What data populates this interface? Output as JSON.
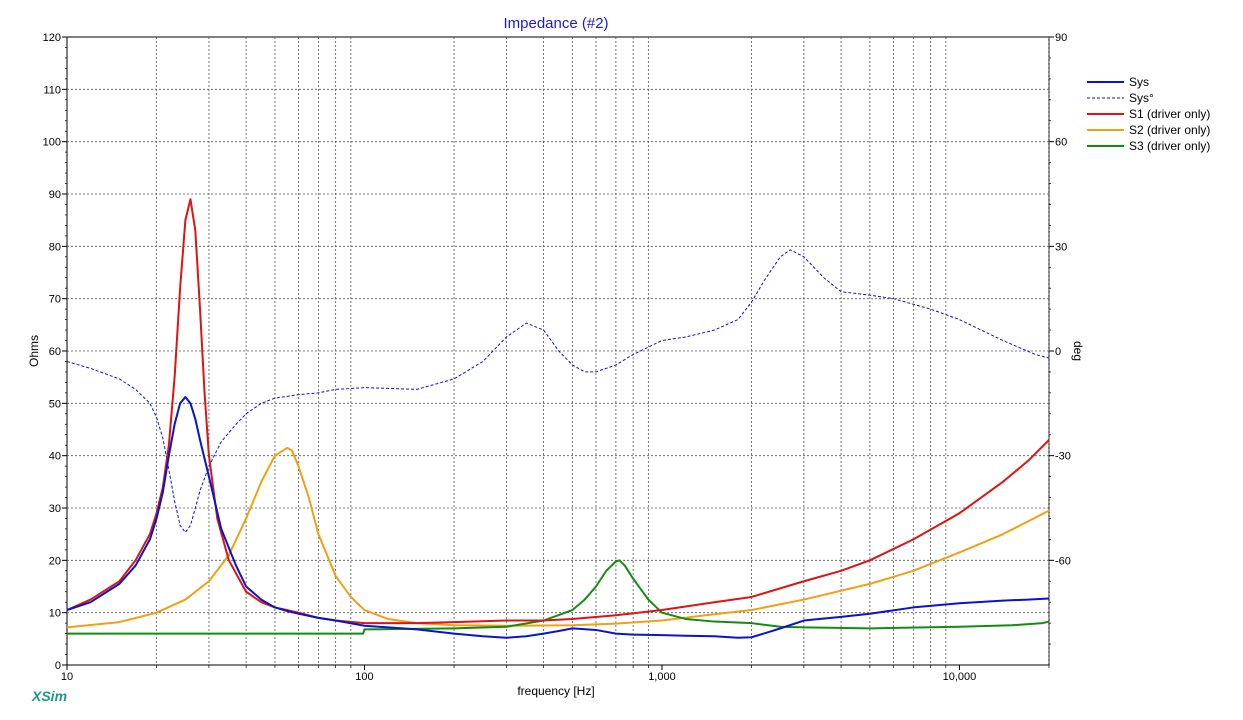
{
  "chart_data": {
    "type": "line",
    "title": "Impedance (#2)",
    "xlabel": "frequency [Hz]",
    "ylabel": "Ohms",
    "y2label": "deg",
    "xscale": "log",
    "xlim": [
      10,
      20000
    ],
    "ylim": [
      0,
      120
    ],
    "y2lim": [
      -90,
      90
    ],
    "xticks": [
      {
        "value": 10,
        "label": "10"
      },
      {
        "value": 100,
        "label": "100"
      },
      {
        "value": 1000,
        "label": "1,000"
      },
      {
        "value": 10000,
        "label": "10,000"
      }
    ],
    "yticks": [
      {
        "value": 0,
        "label": "0"
      },
      {
        "value": 10,
        "label": "10"
      },
      {
        "value": 20,
        "label": "20"
      },
      {
        "value": 30,
        "label": "30"
      },
      {
        "value": 40,
        "label": "40"
      },
      {
        "value": 50,
        "label": "50"
      },
      {
        "value": 60,
        "label": "60"
      },
      {
        "value": 70,
        "label": "70"
      },
      {
        "value": 80,
        "label": "80"
      },
      {
        "value": 90,
        "label": "90"
      },
      {
        "value": 100,
        "label": "100"
      },
      {
        "value": 110,
        "label": "110"
      },
      {
        "value": 120,
        "label": "120"
      }
    ],
    "y2ticks": [
      {
        "value": 90,
        "label": "90"
      },
      {
        "value": 60,
        "label": "60"
      },
      {
        "value": 30,
        "label": "30"
      },
      {
        "value": 0,
        "label": "0"
      },
      {
        "value": -30,
        "label": "-30"
      },
      {
        "value": -60,
        "label": "-60"
      }
    ],
    "grid": true,
    "legend_position": "top-right",
    "series": [
      {
        "name": "Sys",
        "axis": "left",
        "color": "#0a14c8",
        "style": "solid",
        "x": [
          10,
          12,
          15,
          17,
          19,
          20,
          21,
          22,
          23,
          24,
          25,
          26,
          27,
          28,
          30,
          33,
          37,
          40,
          45,
          50,
          55,
          60,
          70,
          80,
          100,
          150,
          200,
          250,
          300,
          350,
          400,
          450,
          500,
          600,
          700,
          800,
          1000,
          1200,
          1500,
          1800,
          2000,
          2200,
          2500,
          3000,
          4000,
          5000,
          7000,
          10000,
          14000,
          17000,
          20000
        ],
        "y": [
          10.5,
          12,
          15.5,
          19,
          24,
          28,
          33,
          40,
          46,
          50,
          51.2,
          50,
          47,
          43,
          36,
          26,
          19,
          15,
          12.5,
          11,
          10.3,
          9.8,
          9,
          8.5,
          7.5,
          6.8,
          6,
          5.5,
          5.2,
          5.5,
          6,
          6.5,
          7,
          6.7,
          6,
          5.8,
          5.7,
          5.6,
          5.5,
          5.2,
          5.3,
          6,
          7,
          8.5,
          9.2,
          9.8,
          11,
          11.8,
          12.3,
          12.5,
          12.7
        ]
      },
      {
        "name": "Sys°",
        "axis": "right",
        "color": "#0a14c8",
        "style": "dashed",
        "x": [
          10,
          12,
          15,
          17,
          19,
          20,
          21,
          22,
          23,
          24,
          25,
          26,
          27,
          28,
          30,
          33,
          37,
          40,
          45,
          50,
          55,
          60,
          70,
          80,
          100,
          150,
          200,
          250,
          300,
          350,
          400,
          450,
          500,
          550,
          600,
          700,
          800,
          1000,
          1200,
          1500,
          1800,
          2000,
          2200,
          2500,
          2700,
          3000,
          3500,
          4000,
          5000,
          6000,
          8000,
          10000,
          14000,
          18000,
          20000
        ],
        "y": [
          -3,
          -5,
          -8,
          -11,
          -15,
          -19,
          -25,
          -34,
          -43,
          -50,
          -52,
          -50,
          -45,
          -40,
          -33,
          -26,
          -21,
          -18,
          -15,
          -13.5,
          -13,
          -12.5,
          -12,
          -11,
          -10.5,
          -11,
          -8,
          -3,
          4,
          8,
          6,
          0,
          -4,
          -6,
          -6,
          -4,
          -1,
          3,
          4,
          6,
          9,
          14,
          20,
          27,
          29,
          27,
          21,
          17,
          16,
          15,
          12,
          9,
          3,
          -1,
          -2
        ]
      },
      {
        "name": "S1 (driver only)",
        "axis": "left",
        "color": "#dc1414",
        "style": "solid",
        "x": [
          10,
          12,
          15,
          17,
          19,
          20,
          21,
          22,
          23,
          24,
          25,
          26,
          27,
          28,
          29,
          30,
          32,
          35,
          40,
          45,
          50,
          55,
          60,
          70,
          80,
          100,
          150,
          200,
          300,
          400,
          500,
          700,
          1000,
          1500,
          2000,
          3000,
          4000,
          5000,
          7000,
          10000,
          14000,
          17000,
          20000
        ],
        "y": [
          10.5,
          12.5,
          16,
          20,
          25,
          29,
          34,
          42,
          55,
          72,
          85,
          89,
          83,
          68,
          52,
          40,
          28,
          20,
          14,
          12,
          11,
          10.5,
          10,
          9,
          8.5,
          8,
          8,
          8.2,
          8.5,
          8.5,
          8.8,
          9.5,
          10.5,
          12,
          13,
          16,
          18,
          20,
          24,
          29,
          35,
          39,
          43
        ]
      },
      {
        "name": "S2 (driver only)",
        "axis": "left",
        "color": "#f0a014",
        "style": "solid",
        "x": [
          10,
          15,
          20,
          25,
          30,
          35,
          40,
          45,
          50,
          55,
          57,
          60,
          65,
          70,
          80,
          90,
          100,
          120,
          150,
          200,
          300,
          500,
          700,
          1000,
          1500,
          2000,
          3000,
          5000,
          7000,
          10000,
          14000,
          20000
        ],
        "y": [
          7.2,
          8.2,
          10,
          12.5,
          16,
          21,
          28,
          35,
          40,
          41.5,
          41,
          38,
          32,
          25,
          17,
          13,
          10.5,
          8.8,
          8,
          7.6,
          7.5,
          7.6,
          7.9,
          8.5,
          9.7,
          10.5,
          12.5,
          15.5,
          18,
          21.5,
          25,
          29.5
        ]
      },
      {
        "name": "S3 (driver only)",
        "axis": "left",
        "color": "#148c14",
        "style": "solid",
        "x": [
          10,
          50,
          99,
          100,
          200,
          300,
          400,
          500,
          550,
          600,
          650,
          700,
          720,
          750,
          800,
          900,
          1000,
          1200,
          1500,
          2000,
          2500,
          3000,
          5000,
          10000,
          15000,
          19000,
          20000
        ],
        "y": [
          6,
          6,
          6,
          6.8,
          7,
          7.3,
          8.5,
          10.5,
          12.5,
          15,
          18,
          19.8,
          20,
          19,
          16.5,
          12.5,
          10,
          8.8,
          8.3,
          8,
          7.3,
          7.2,
          7,
          7.3,
          7.6,
          8,
          8.3
        ]
      }
    ]
  },
  "branding": {
    "label": "XSim"
  }
}
